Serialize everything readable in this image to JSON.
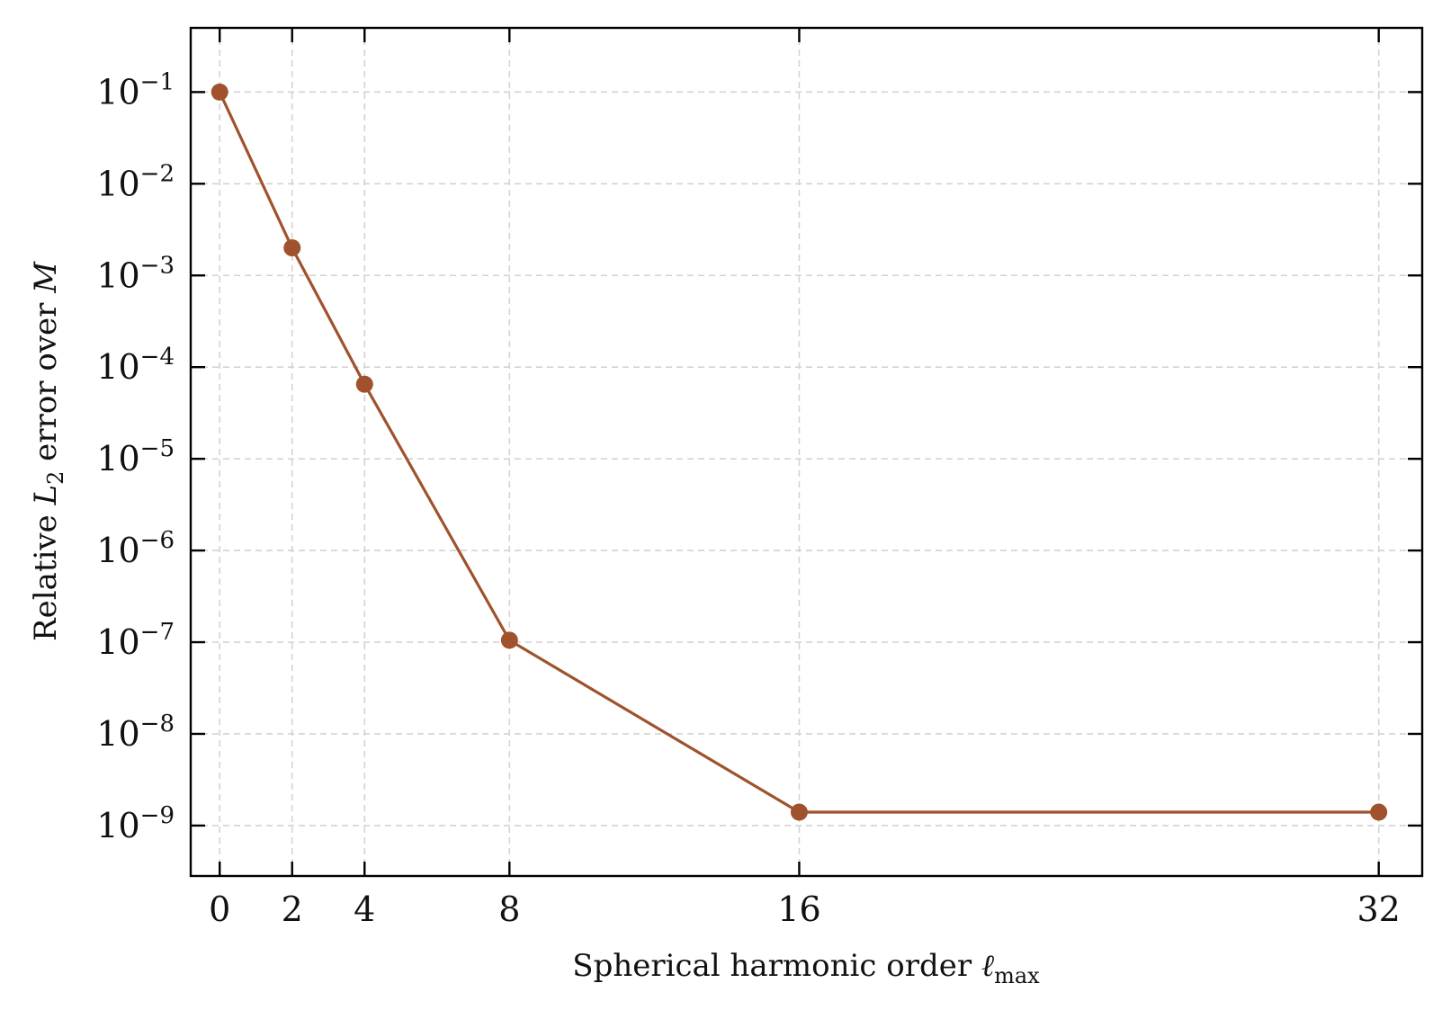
{
  "chart_data": {
    "type": "line",
    "xlabel": "Spherical harmonic order",
    "xlabel_math": "ℓ",
    "xlabel_sub": "max",
    "ylabel": "Relative",
    "ylabel_math": "L",
    "ylabel_sub": "2",
    "ylabel_rest": "error over",
    "ylabel_math2": "M",
    "y_scale": "log",
    "xlim": [
      -0.8,
      33.2
    ],
    "ylim_log10": [
      -9.55,
      -0.3
    ],
    "x_ticks": [
      0,
      2,
      4,
      8,
      16,
      32
    ],
    "y_ticks_exp": [
      -1,
      -2,
      -3,
      -4,
      -5,
      -6,
      -7,
      -8,
      -9
    ],
    "y_tick_base": "10",
    "grid": true,
    "color": "#a0522d",
    "series": [
      {
        "x": [
          0,
          2,
          4,
          8,
          16,
          32
        ],
        "y": [
          0.1,
          0.002,
          6.5e-05,
          1.05e-07,
          1.4e-09,
          1.4e-09
        ]
      }
    ]
  }
}
